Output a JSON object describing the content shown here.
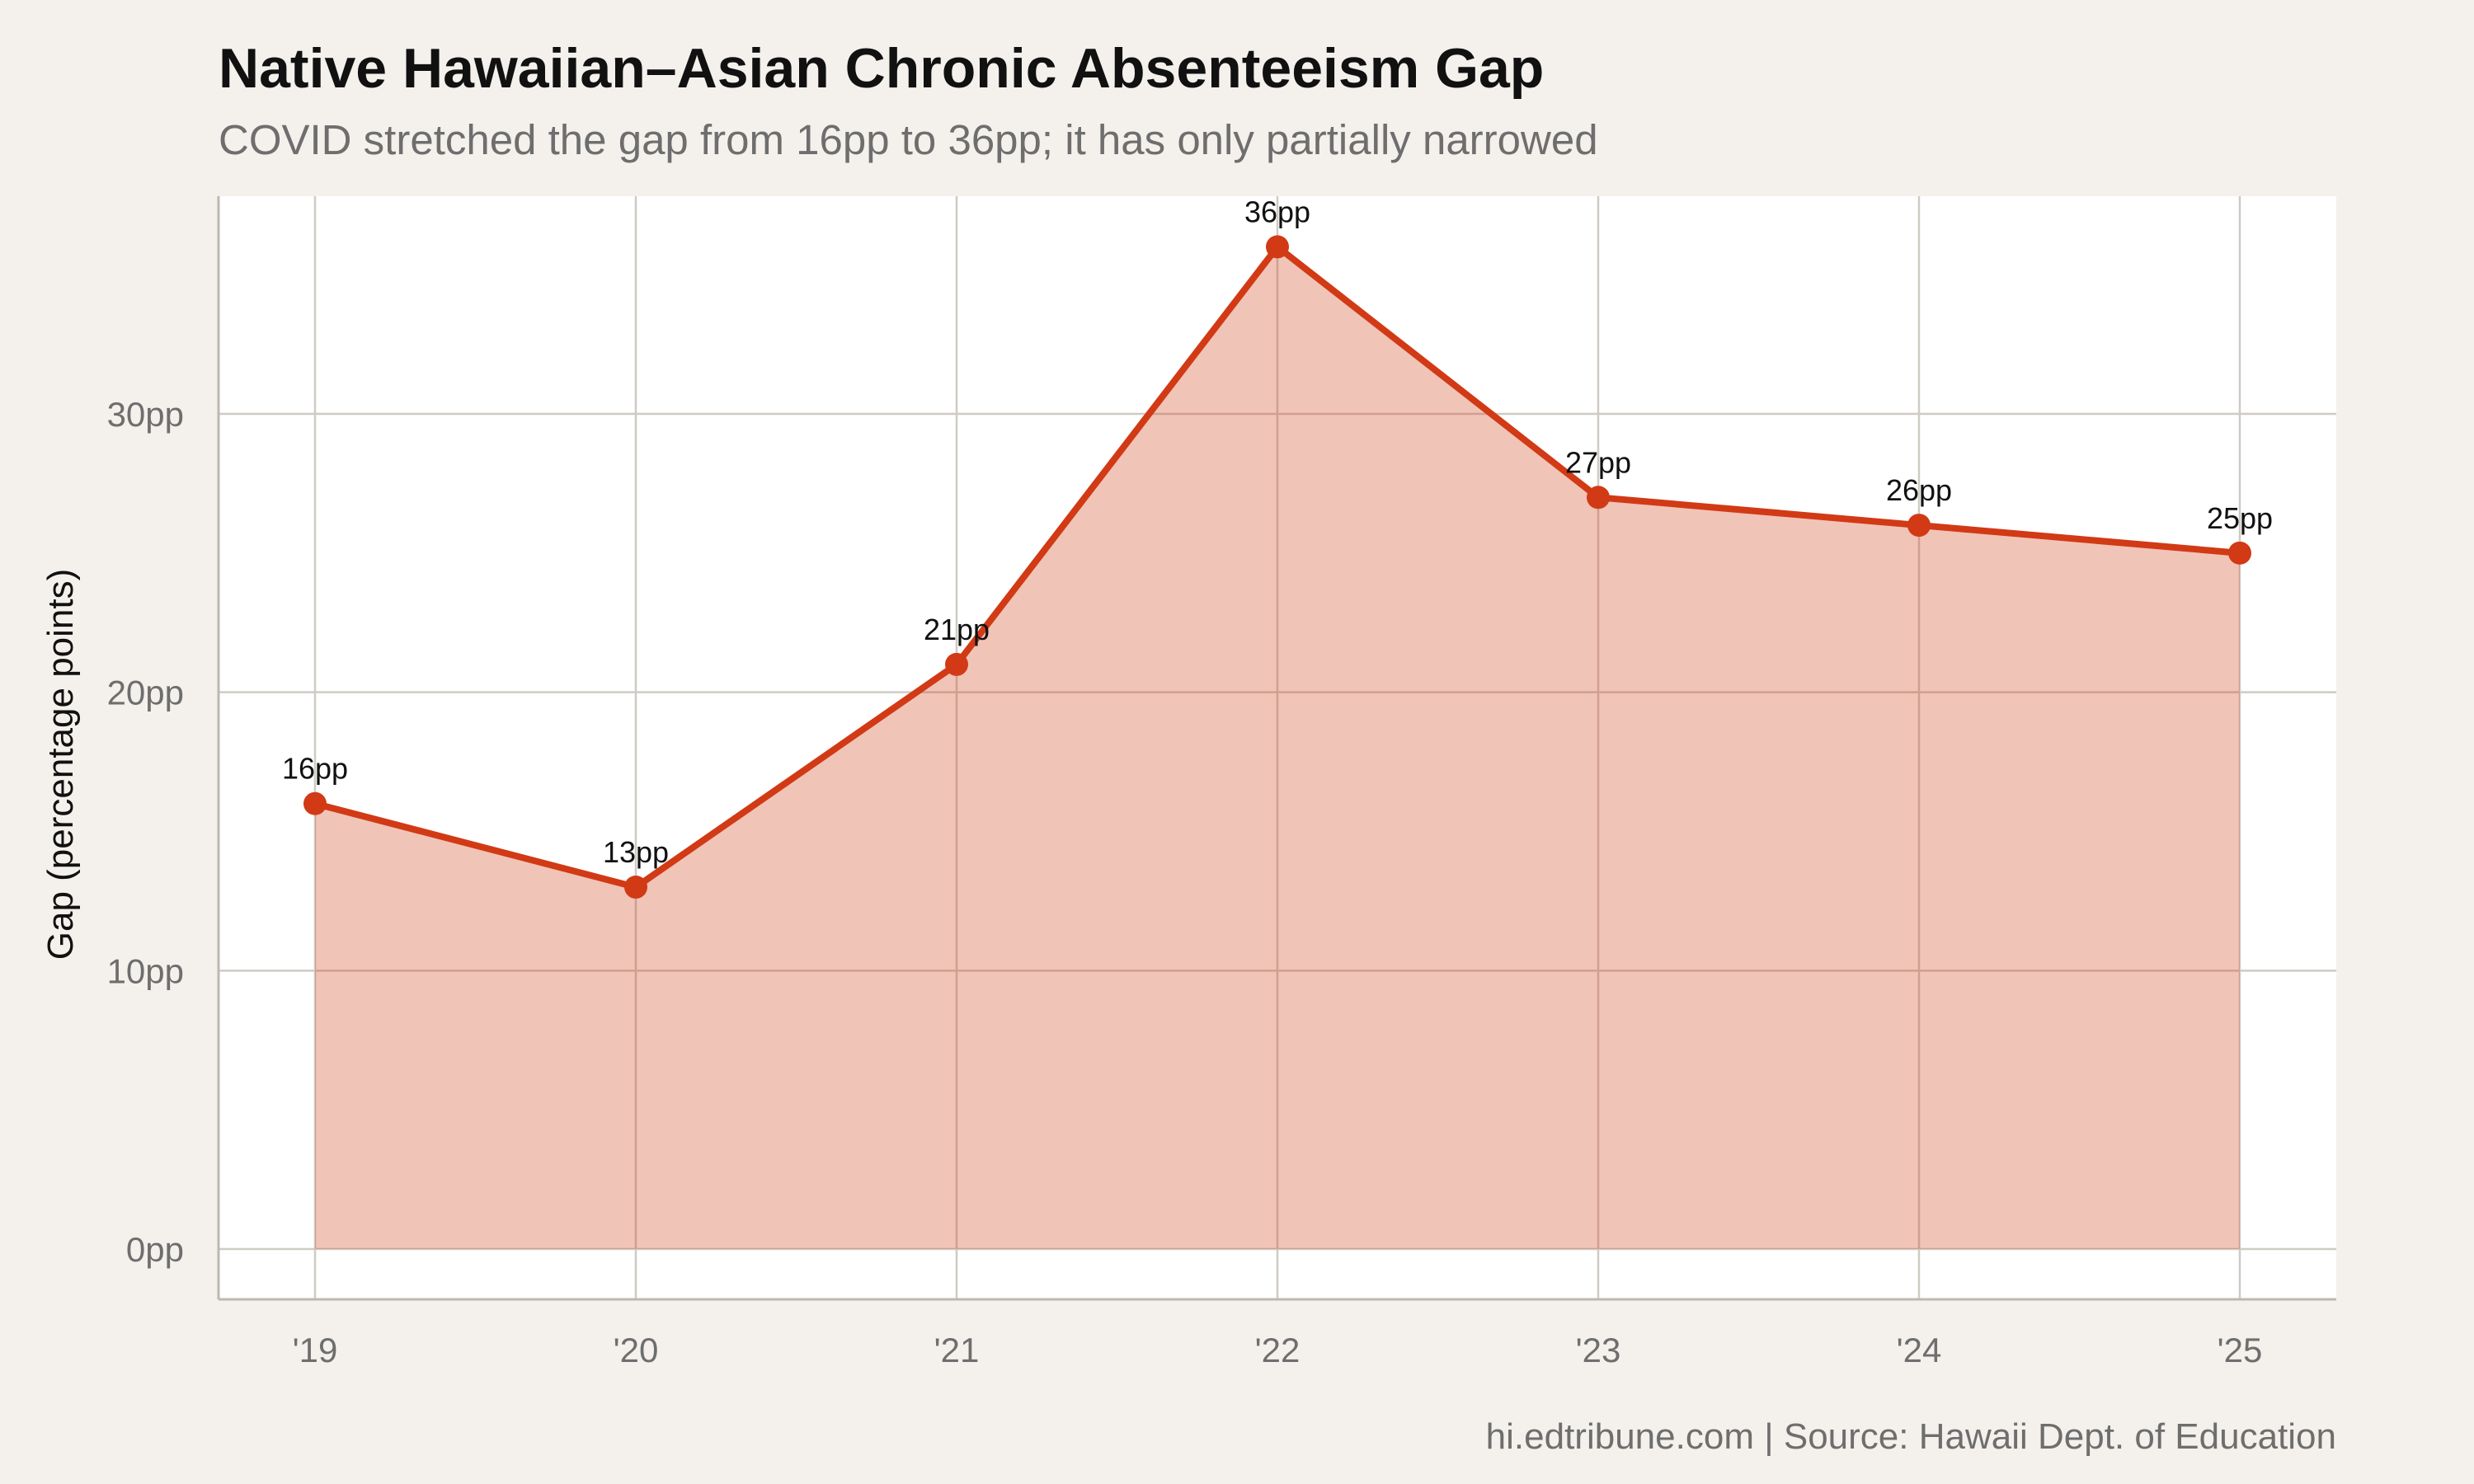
{
  "title": "Native Hawaiian–Asian Chronic Absenteeism Gap",
  "subtitle": "COVID stretched the gap from 16pp to 36pp; it has only partially narrowed",
  "caption": "hi.edtribune.com | Source: Hawaii Dept. of Education",
  "colors": {
    "line": "#d13a15",
    "fill": "#f1c3b7",
    "panel": "#ffffff",
    "background": "#f4f1ec",
    "grid": "#cfcbc4"
  },
  "chart_data": {
    "type": "area",
    "categories": [
      "'19",
      "'20",
      "'21",
      "'22",
      "'23",
      "'24",
      "'25"
    ],
    "values": [
      16,
      13,
      21,
      36,
      27,
      26,
      25
    ],
    "data_labels": [
      "16pp",
      "13pp",
      "21pp",
      "36pp",
      "27pp",
      "26pp",
      "25pp"
    ],
    "ylabel": "Gap (percentage points)",
    "yticks": [
      0,
      10,
      20,
      30
    ],
    "ytick_labels": [
      "0pp",
      "10pp",
      "20pp",
      "30pp"
    ],
    "ylim": [
      -1.8,
      37.8
    ],
    "grid": true,
    "legend": "none"
  }
}
